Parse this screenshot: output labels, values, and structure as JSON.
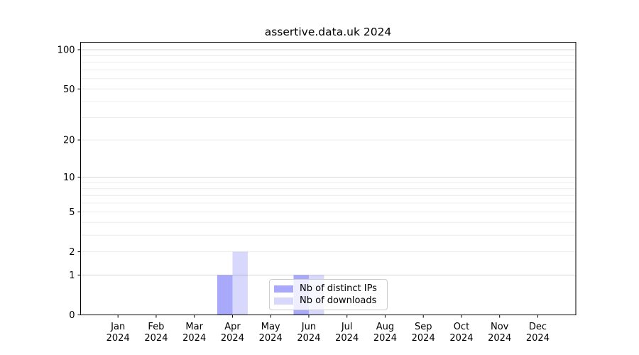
{
  "chart_data": {
    "type": "bar",
    "title": "assertive.data.uk 2024",
    "categories": [
      "Jan",
      "Feb",
      "Mar",
      "Apr",
      "May",
      "Jun",
      "Jul",
      "Aug",
      "Sep",
      "Oct",
      "Nov",
      "Dec"
    ],
    "category_year": "2024",
    "series": [
      {
        "name": "Nb of distinct IPs",
        "color_hex": "#a9a9f8",
        "fill": "rgba(10,10,245,0.35)",
        "values": [
          0,
          0,
          0,
          1,
          0,
          1,
          0,
          0,
          0,
          0,
          0,
          0
        ]
      },
      {
        "name": "Nb of downloads",
        "color_hex": "#d8d8fa",
        "fill": "rgba(10,10,245,0.16)",
        "values": [
          0,
          0,
          0,
          2,
          0,
          1,
          0,
          0,
          0,
          0,
          0,
          0
        ]
      }
    ],
    "y_axis": {
      "scale": "log1p",
      "min": 0,
      "max": 100,
      "tick_values": [
        0,
        1,
        2,
        5,
        10,
        20,
        50,
        100
      ],
      "tick_labels": [
        "0",
        "1",
        "2",
        "5",
        "10",
        "20",
        "50",
        "100"
      ],
      "major_gridline_values": [
        1,
        10,
        100
      ],
      "minor_gridline_values": [
        2,
        3,
        4,
        5,
        6,
        7,
        8,
        9,
        20,
        30,
        40,
        50,
        60,
        70,
        80,
        90
      ]
    },
    "legend": {
      "location": "inside-bottom-center"
    },
    "colors": {
      "grid_major": "#d6d6d6",
      "grid_minor": "#ececec",
      "spine": "#000000",
      "tick_text": "#000000",
      "plot_background": "#ffffff",
      "figure_background": "#ffffff"
    }
  }
}
